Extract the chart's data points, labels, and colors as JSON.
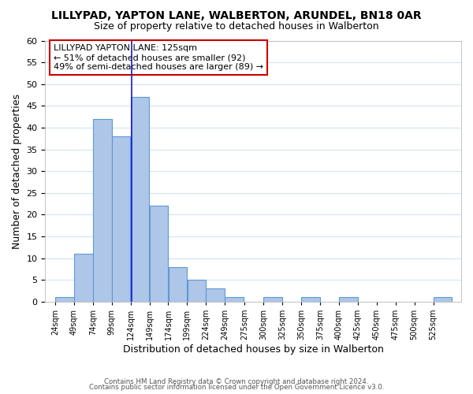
{
  "title": "LILLYPAD, YAPTON LANE, WALBERTON, ARUNDEL, BN18 0AR",
  "subtitle": "Size of property relative to detached houses in Walberton",
  "xlabel": "Distribution of detached houses by size in Walberton",
  "ylabel": "Number of detached properties",
  "bin_left_edges": [
    24,
    49,
    74,
    99,
    124,
    149,
    174,
    199,
    224,
    249,
    275,
    300,
    325,
    350,
    375,
    400,
    425,
    450,
    475,
    500,
    525
  ],
  "bin_heights": [
    1,
    11,
    42,
    38,
    47,
    22,
    8,
    5,
    3,
    1,
    0,
    1,
    0,
    1,
    0,
    1,
    0,
    0,
    0,
    0,
    1
  ],
  "bar_color": "#aec6e8",
  "bar_edge_color": "#5b9bd5",
  "annotation_line1": "LILLYPAD YAPTON LANE: 125sqm",
  "annotation_line2": "← 51% of detached houses are smaller (92)",
  "annotation_line3": "49% of semi-detached houses are larger (89) →",
  "annotation_box_color": "#ffffff",
  "annotation_box_edge": "#cc0000",
  "property_line_x": 125,
  "ylim": [
    0,
    60
  ],
  "yticks": [
    0,
    5,
    10,
    15,
    20,
    25,
    30,
    35,
    40,
    45,
    50,
    55,
    60
  ],
  "grid_color": "#d0e4f5",
  "footer1": "Contains HM Land Registry data © Crown copyright and database right 2024.",
  "footer2": "Contains public sector information licensed under the Open Government Licence v3.0.",
  "tick_labels": [
    "24sqm",
    "49sqm",
    "74sqm",
    "99sqm",
    "124sqm",
    "149sqm",
    "174sqm",
    "199sqm",
    "224sqm",
    "249sqm",
    "275sqm",
    "300sqm",
    "325sqm",
    "350sqm",
    "375sqm",
    "400sqm",
    "425sqm",
    "450sqm",
    "475sqm",
    "500sqm",
    "525sqm"
  ]
}
